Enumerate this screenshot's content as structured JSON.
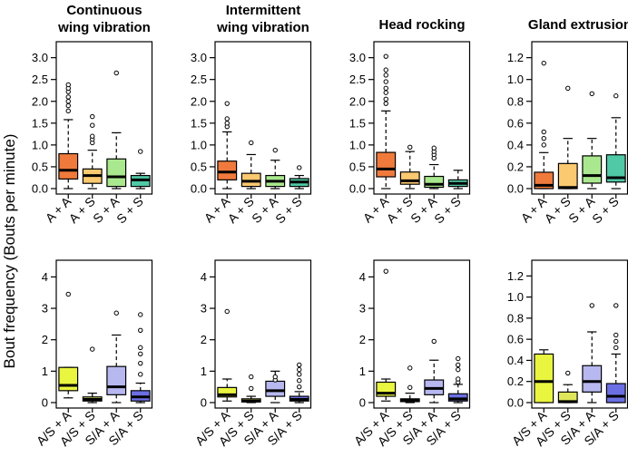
{
  "y_axis_label": "Bout frequency (Bouts per minute)",
  "colors": {
    "A + A": "#f07a3c",
    "A + S": "#fbc96f",
    "S + A": "#a9e88e",
    "S + S": "#4fc9a6",
    "A/S + A": "#e9f53f",
    "A/S + S": "#e0e65a",
    "S/A + A": "#b7b8f0",
    "S/A + S": "#6b6fe3"
  },
  "chart_data": [
    {
      "type": "boxplot",
      "title": [
        "Continuous",
        "wing vibration"
      ],
      "categories": [
        "A + A",
        "A + S",
        "S + A",
        "S + S"
      ],
      "ylim": [
        0,
        3.2
      ],
      "yticks": [
        0.0,
        0.5,
        1.0,
        1.5,
        2.0,
        2.5,
        3.0
      ],
      "tick_labels": [
        "0.0",
        "0.5",
        "1.0",
        "1.5",
        "2.0",
        "2.5",
        "3.0"
      ],
      "boxes": [
        {
          "whislo": 0,
          "q1": 0.22,
          "med": 0.42,
          "q3": 0.8,
          "whishi": 1.58,
          "fliers": [
            1.78,
            1.9,
            2.0,
            2.1,
            2.22,
            2.3,
            2.38
          ]
        },
        {
          "whislo": 0,
          "q1": 0.12,
          "med": 0.3,
          "q3": 0.45,
          "whishi": 0.88,
          "fliers": [
            1.05,
            1.13,
            1.2,
            1.45,
            1.65
          ]
        },
        {
          "whislo": 0,
          "q1": 0.05,
          "med": 0.27,
          "q3": 0.68,
          "whishi": 1.28,
          "fliers": [
            2.65
          ]
        },
        {
          "whislo": 0,
          "q1": 0.05,
          "med": 0.2,
          "q3": 0.3,
          "whishi": 0.35,
          "fliers": [
            0.85
          ]
        }
      ]
    },
    {
      "type": "boxplot",
      "title": [
        "Intermittent",
        "wing vibration"
      ],
      "categories": [
        "A + A",
        "A + S",
        "S + A",
        "S + S"
      ],
      "ylim": [
        0,
        3.2
      ],
      "yticks": [
        0.0,
        0.5,
        1.0,
        1.5,
        2.0,
        2.5,
        3.0
      ],
      "tick_labels": [
        "0.0",
        "0.5",
        "1.0",
        "1.5",
        "2.0",
        "2.5",
        "3.0"
      ],
      "boxes": [
        {
          "whislo": 0,
          "q1": 0.2,
          "med": 0.38,
          "q3": 0.63,
          "whishi": 1.3,
          "fliers": [
            1.42,
            1.5,
            1.6,
            1.95
          ]
        },
        {
          "whislo": 0,
          "q1": 0.05,
          "med": 0.17,
          "q3": 0.35,
          "whishi": 0.78,
          "fliers": [
            1.05
          ]
        },
        {
          "whislo": 0,
          "q1": 0.05,
          "med": 0.17,
          "q3": 0.3,
          "whishi": 0.65,
          "fliers": [
            0.88
          ]
        },
        {
          "whislo": 0,
          "q1": 0.05,
          "med": 0.15,
          "q3": 0.23,
          "whishi": 0.3,
          "fliers": [
            0.48
          ]
        }
      ]
    },
    {
      "type": "boxplot",
      "title": [
        "Head rocking"
      ],
      "categories": [
        "A + A",
        "A + S",
        "S + A",
        "S + S"
      ],
      "ylim": [
        0,
        3.2
      ],
      "yticks": [
        0.0,
        0.5,
        1.0,
        1.5,
        2.0,
        2.5,
        3.0
      ],
      "tick_labels": [
        "0.0",
        "0.5",
        "1.0",
        "1.5",
        "2.0",
        "2.5",
        "3.0"
      ],
      "boxes": [
        {
          "whislo": 0,
          "q1": 0.27,
          "med": 0.45,
          "q3": 0.83,
          "whishi": 1.78,
          "fliers": [
            1.95,
            2.05,
            2.2,
            2.3,
            2.45,
            2.6,
            2.72,
            3.03
          ]
        },
        {
          "whislo": 0,
          "q1": 0.1,
          "med": 0.18,
          "q3": 0.38,
          "whishi": 0.85,
          "fliers": [
            0.95
          ]
        },
        {
          "whislo": 0,
          "q1": 0.03,
          "med": 0.1,
          "q3": 0.28,
          "whishi": 0.55,
          "fliers": [
            0.7,
            0.78,
            0.85,
            0.93
          ]
        },
        {
          "whislo": 0,
          "q1": 0.05,
          "med": 0.12,
          "q3": 0.2,
          "whishi": 0.42,
          "fliers": []
        }
      ]
    },
    {
      "type": "boxplot",
      "title": [
        "Gland extrusion"
      ],
      "categories": [
        "A + A",
        "A + S",
        "S + A",
        "S + S"
      ],
      "ylim": [
        0,
        1.28
      ],
      "yticks": [
        0.0,
        0.2,
        0.4,
        0.6,
        0.8,
        1.0,
        1.2
      ],
      "tick_labels": [
        "0.0",
        "0.2",
        "0.4",
        "0.6",
        "0.8",
        "1.0",
        "1.2"
      ],
      "boxes": [
        {
          "whislo": 0,
          "q1": 0,
          "med": 0.03,
          "q3": 0.15,
          "whishi": 0.33,
          "fliers": [
            0.4,
            0.46,
            0.52,
            1.15
          ]
        },
        {
          "whislo": 0,
          "q1": 0,
          "med": 0.01,
          "q3": 0.23,
          "whishi": 0.46,
          "fliers": [
            0.92
          ]
        },
        {
          "whislo": 0,
          "q1": 0.05,
          "med": 0.12,
          "q3": 0.3,
          "whishi": 0.46,
          "fliers": [
            0.87
          ]
        },
        {
          "whislo": 0,
          "q1": 0.06,
          "med": 0.1,
          "q3": 0.31,
          "whishi": 0.65,
          "fliers": [
            0.85
          ]
        }
      ]
    },
    {
      "type": "boxplot",
      "title": [],
      "categories": [
        "A/S + A",
        "A/S + S",
        "S/A + A",
        "S/A + S"
      ],
      "ylim": [
        0,
        4.3
      ],
      "yticks": [
        0,
        1,
        2,
        3,
        4
      ],
      "tick_labels": [
        "0",
        "1",
        "2",
        "3",
        "4"
      ],
      "boxes": [
        {
          "whislo": 0.15,
          "q1": 0.38,
          "med": 0.55,
          "q3": 1.12,
          "whishi": 1.12,
          "fliers": [
            3.45
          ]
        },
        {
          "whislo": 0,
          "q1": 0.05,
          "med": 0.1,
          "q3": 0.18,
          "whishi": 0.3,
          "fliers": [
            1.7
          ]
        },
        {
          "whislo": 0,
          "q1": 0.25,
          "med": 0.5,
          "q3": 1.15,
          "whishi": 2.15,
          "fliers": [
            2.85
          ]
        },
        {
          "whislo": 0,
          "q1": 0.05,
          "med": 0.18,
          "q3": 0.38,
          "whishi": 0.62,
          "fliers": [
            0.9,
            1.25,
            1.55,
            1.75,
            2.3,
            2.8
          ]
        }
      ]
    },
    {
      "type": "boxplot",
      "title": [],
      "categories": [
        "A/S + A",
        "A/S + S",
        "S/A + A",
        "S/A + S"
      ],
      "ylim": [
        0,
        4.3
      ],
      "yticks": [
        0,
        1,
        2,
        3,
        4
      ],
      "tick_labels": [
        "0",
        "1",
        "2",
        "3",
        "4"
      ],
      "boxes": [
        {
          "whislo": 0.05,
          "q1": 0.18,
          "med": 0.25,
          "q3": 0.48,
          "whishi": 0.75,
          "fliers": [
            2.9
          ]
        },
        {
          "whislo": 0,
          "q1": 0.02,
          "med": 0.05,
          "q3": 0.12,
          "whishi": 0.2,
          "fliers": [
            0.45,
            0.82
          ]
        },
        {
          "whislo": 0,
          "q1": 0.2,
          "med": 0.38,
          "q3": 0.68,
          "whishi": 1.0,
          "fliers": [
            0.72,
            0.82
          ]
        },
        {
          "whislo": 0,
          "q1": 0.05,
          "med": 0.1,
          "q3": 0.2,
          "whishi": 0.35,
          "fliers": [
            0.5,
            0.7,
            0.9,
            1.05,
            1.2
          ]
        }
      ]
    },
    {
      "type": "boxplot",
      "title": [],
      "categories": [
        "A/S + A",
        "A/S + S",
        "S/A + A",
        "S/A + S"
      ],
      "ylim": [
        0,
        4.3
      ],
      "yticks": [
        0,
        1,
        2,
        3,
        4
      ],
      "tick_labels": [
        "0",
        "1",
        "2",
        "3",
        "4"
      ],
      "boxes": [
        {
          "whislo": 0.05,
          "q1": 0.2,
          "med": 0.3,
          "q3": 0.65,
          "whishi": 0.75,
          "fliers": [
            4.18
          ]
        },
        {
          "whislo": 0,
          "q1": 0.03,
          "med": 0.08,
          "q3": 0.12,
          "whishi": 0.3,
          "fliers": [
            0.48,
            1.1
          ]
        },
        {
          "whislo": 0,
          "q1": 0.25,
          "med": 0.45,
          "q3": 0.72,
          "whishi": 1.35,
          "fliers": [
            1.95
          ]
        },
        {
          "whislo": 0,
          "q1": 0.05,
          "med": 0.12,
          "q3": 0.28,
          "whishi": 0.58,
          "fliers": [
            0.65,
            0.75,
            1.05,
            1.2,
            1.4
          ]
        }
      ]
    },
    {
      "type": "boxplot",
      "title": [],
      "categories": [
        "A/S + A",
        "A/S + S",
        "S/A + A",
        "S/A + S"
      ],
      "ylim": [
        0,
        1.28
      ],
      "yticks": [
        0.0,
        0.2,
        0.4,
        0.6,
        0.8,
        1.0,
        1.2
      ],
      "tick_labels": [
        "0.0",
        "0.2",
        "0.4",
        "0.6",
        "0.8",
        "1.0",
        "1.2"
      ],
      "boxes": [
        {
          "whislo": 0,
          "q1": 0,
          "med": 0.2,
          "q3": 0.46,
          "whishi": 0.5,
          "fliers": []
        },
        {
          "whislo": 0,
          "q1": 0,
          "med": 0.01,
          "q3": 0.1,
          "whishi": 0.17,
          "fliers": [
            0.28
          ]
        },
        {
          "whislo": 0,
          "q1": 0.1,
          "med": 0.2,
          "q3": 0.35,
          "whishi": 0.67,
          "fliers": [
            0.92
          ]
        },
        {
          "whislo": 0,
          "q1": 0,
          "med": 0.06,
          "q3": 0.18,
          "whishi": 0.46,
          "fliers": [
            0.52,
            0.58,
            0.64,
            0.92
          ]
        }
      ]
    }
  ]
}
